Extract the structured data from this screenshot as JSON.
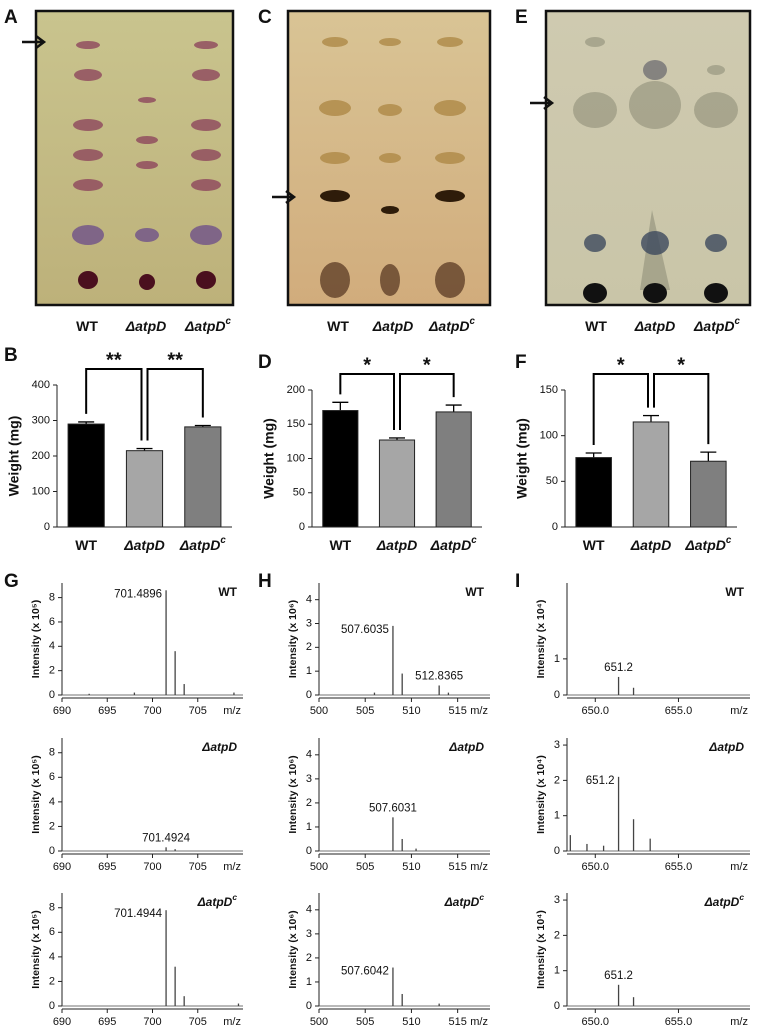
{
  "panel_letters": [
    "A",
    "C",
    "E",
    "B",
    "D",
    "F",
    "G",
    "H",
    "I"
  ],
  "tlc": [
    {
      "lanes": [
        "WT",
        "ΔatpD",
        "ΔatpD"
      ],
      "superscripts": {
        "2": "c"
      }
    },
    {
      "lanes": [
        "WT",
        "ΔatpD",
        "ΔatpD"
      ],
      "superscripts": {
        "2": "c"
      }
    },
    {
      "lanes": [
        "WT",
        "ΔatpD",
        "ΔatpD"
      ],
      "superscripts": {
        "2": "c"
      }
    }
  ],
  "chart_data": [
    {
      "type": "bar",
      "ylabel": "Weight (mg)",
      "categories": [
        "WT",
        "ΔatpD",
        "ΔatpD"
      ],
      "superscripts": {
        "2": "c"
      },
      "values": [
        290,
        215,
        282
      ],
      "errors": [
        6,
        6,
        4
      ],
      "colors": [
        "#000000",
        "#a6a6a6",
        "#7f7f7f"
      ],
      "ylim": [
        0,
        400
      ],
      "yticks": [
        0,
        100,
        200,
        300,
        400
      ],
      "significance_labels": [
        "**",
        "**"
      ]
    },
    {
      "type": "bar",
      "ylabel": "Weight (mg)",
      "categories": [
        "WT",
        "ΔatpD",
        "ΔatpD"
      ],
      "superscripts": {
        "2": "c"
      },
      "values": [
        170,
        127,
        168
      ],
      "errors": [
        12,
        3,
        10
      ],
      "colors": [
        "#000000",
        "#a6a6a6",
        "#7f7f7f"
      ],
      "ylim": [
        0,
        200
      ],
      "yticks": [
        0,
        50,
        100,
        150,
        200
      ],
      "significance_labels": [
        "*",
        "*"
      ]
    },
    {
      "type": "bar",
      "ylabel": "Weight (mg)",
      "categories": [
        "WT",
        "ΔatpD",
        "ΔatpD"
      ],
      "superscripts": {
        "2": "c"
      },
      "values": [
        76,
        115,
        72
      ],
      "errors": [
        5,
        7,
        10
      ],
      "colors": [
        "#000000",
        "#a6a6a6",
        "#7f7f7f"
      ],
      "ylim": [
        0,
        150
      ],
      "yticks": [
        0,
        50,
        100,
        150
      ],
      "significance_labels": [
        "*",
        "*"
      ]
    },
    {
      "type": "spectrum",
      "sample": "WT",
      "ylabel": "Intensity (x 10⁵)",
      "xlabel": "m/z",
      "annotations": [
        "701.4896"
      ],
      "x": [
        701.5,
        702.5,
        703.5,
        693,
        698,
        709
      ],
      "values": [
        8.6,
        3.6,
        0.9,
        0.1,
        0.2,
        0.2
      ],
      "xlim": [
        690,
        710
      ],
      "xticks": [
        690,
        695,
        700,
        705
      ],
      "ylim": [
        0,
        9.2
      ],
      "yticks": [
        0,
        2,
        4,
        6,
        8
      ],
      "color": "#444444"
    },
    {
      "type": "spectrum",
      "sample": "ΔatpD",
      "ylabel": "Intensity (x 10⁵)",
      "xlabel": "m/z",
      "annotations": [
        "701.4924"
      ],
      "x": [
        701.5,
        702.5
      ],
      "values": [
        0.3,
        0.15
      ],
      "xlim": [
        690,
        710
      ],
      "xticks": [
        690,
        695,
        700,
        705
      ],
      "ylim": [
        0,
        9.2
      ],
      "yticks": [
        0,
        2,
        4,
        6,
        8
      ],
      "color": "#444444"
    },
    {
      "type": "spectrum",
      "sample": "ΔatpD",
      "sample_sup": "c",
      "ylabel": "Intensity (x 10⁵)",
      "xlabel": "m/z",
      "annotations": [
        "701.4944"
      ],
      "x": [
        701.5,
        702.5,
        703.5,
        709.5
      ],
      "values": [
        7.8,
        3.2,
        0.8,
        0.2
      ],
      "xlim": [
        690,
        710
      ],
      "xticks": [
        690,
        695,
        700,
        705
      ],
      "ylim": [
        0,
        9.2
      ],
      "yticks": [
        0,
        2,
        4,
        6,
        8
      ],
      "color": "#444444"
    },
    {
      "type": "spectrum",
      "sample": "WT",
      "ylabel": "Intensity (x 10⁶)",
      "xlabel": "m/z",
      "annotations": [
        "507.6035",
        "512.8365"
      ],
      "x": [
        508,
        513,
        509,
        514,
        506
      ],
      "values": [
        2.9,
        0.4,
        0.9,
        0.1,
        0.1
      ],
      "xlim": [
        500,
        518.5
      ],
      "xticks": [
        500,
        505,
        510,
        515
      ],
      "ylim": [
        0,
        4.7
      ],
      "yticks": [
        0,
        1,
        2,
        3,
        4
      ],
      "color": "#444444"
    },
    {
      "type": "spectrum",
      "sample": "ΔatpD",
      "ylabel": "Intensity (x 10⁶)",
      "xlabel": "m/z",
      "annotations": [
        "507.6031"
      ],
      "x": [
        508,
        509,
        510.5
      ],
      "values": [
        1.4,
        0.5,
        0.1
      ],
      "xlim": [
        500,
        518.5
      ],
      "xticks": [
        500,
        505,
        510,
        515
      ],
      "ylim": [
        0,
        4.7
      ],
      "yticks": [
        0,
        1,
        2,
        3,
        4
      ],
      "color": "#444444"
    },
    {
      "type": "spectrum",
      "sample": "ΔatpD",
      "sample_sup": "c",
      "ylabel": "Intensity (x 10⁶)",
      "xlabel": "m/z",
      "annotations": [
        "507.6042"
      ],
      "x": [
        508,
        509,
        513
      ],
      "values": [
        1.6,
        0.5,
        0.1
      ],
      "xlim": [
        500,
        518.5
      ],
      "xticks": [
        500,
        505,
        510,
        515
      ],
      "ylim": [
        0,
        4.7
      ],
      "yticks": [
        0,
        1,
        2,
        3,
        4
      ],
      "color": "#444444"
    },
    {
      "type": "spectrum",
      "sample": "WT",
      "ylabel": "Intensity (x 10⁴)",
      "xlabel": "m/z",
      "annotations": [
        "651.2"
      ],
      "x": [
        651.4,
        652.3
      ],
      "values": [
        0.5,
        0.2
      ],
      "xlim": [
        648.3,
        659.3
      ],
      "xticks": [
        {
          "value": 650,
          "label": "650.0"
        },
        {
          "value": 655,
          "label": "655.0"
        }
      ],
      "ylim": [
        0,
        3.1
      ],
      "yticks": [
        0,
        1
      ],
      "color": "#444444"
    },
    {
      "type": "spectrum",
      "sample": "ΔatpD",
      "ylabel": "Intensity (x 10⁴)",
      "xlabel": "m/z",
      "annotations": [
        "651.2"
      ],
      "x": [
        651.4,
        652.3,
        653.3,
        648.5,
        649.5,
        650.5
      ],
      "values": [
        2.1,
        0.9,
        0.35,
        0.45,
        0.2,
        0.15
      ],
      "xlim": [
        648.3,
        659.3
      ],
      "xticks": [
        {
          "value": 650,
          "label": "650.0"
        },
        {
          "value": 655,
          "label": "655.0"
        }
      ],
      "ylim": [
        0,
        3.2
      ],
      "yticks": [
        0,
        1,
        2,
        3
      ],
      "color": "#444444"
    },
    {
      "type": "spectrum",
      "sample": "ΔatpD",
      "sample_sup": "c",
      "ylabel": "Intensity (x 10⁴)",
      "xlabel": "m/z",
      "annotations": [
        "651.2"
      ],
      "x": [
        651.4,
        652.3
      ],
      "values": [
        0.6,
        0.25
      ],
      "xlim": [
        648.3,
        659.3
      ],
      "xticks": [
        {
          "value": 650,
          "label": "650.0"
        },
        {
          "value": 655,
          "label": "655.0"
        }
      ],
      "ylim": [
        0,
        3.2
      ],
      "yticks": [
        0,
        1,
        2,
        3
      ],
      "color": "#444444"
    }
  ]
}
